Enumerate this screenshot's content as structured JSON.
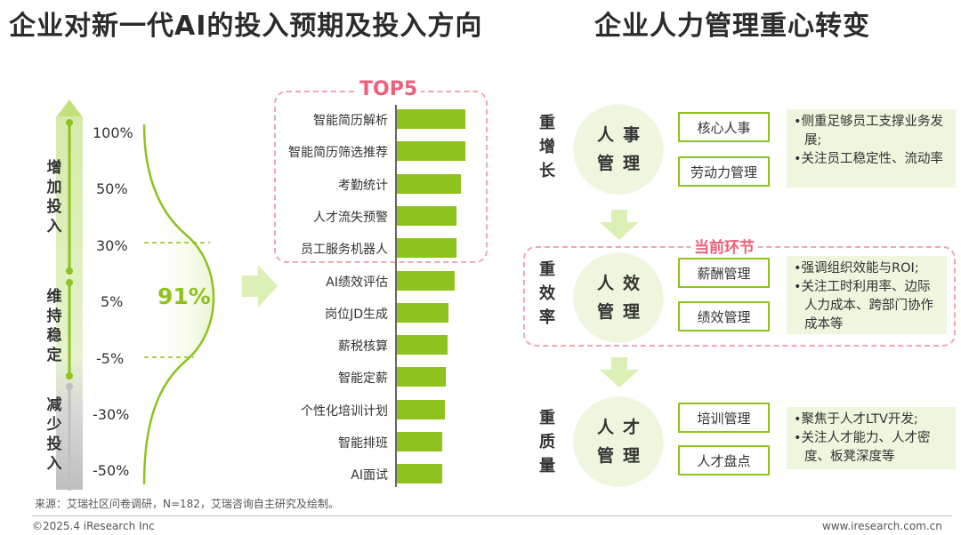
{
  "left": {
    "title": "企业对新一代AI的投入预期及投入方向",
    "y_groups": [
      {
        "label": "增加投入",
        "color": "#8dc21f"
      },
      {
        "label": "维持稳定",
        "color": "#8dc21f"
      },
      {
        "label": "减少投入",
        "color": "#bfbfbf"
      }
    ],
    "y_ticks": [
      "100%",
      "50%",
      "30%",
      "5%",
      "-5%",
      "-30%",
      "-50%"
    ],
    "highlight_value": "91%",
    "top5_label": "TOP5"
  },
  "chart_data": {
    "type": "bar",
    "orientation": "horizontal",
    "categories": [
      "智能简历解析",
      "智能简历筛选推荐",
      "考勤统计",
      "人才流失预警",
      "员工服务机器人",
      "AI绩效评估",
      "岗位JD生成",
      "薪税核算",
      "智能定薪",
      "个性化培训计划",
      "智能排班",
      "AI面试"
    ],
    "values": [
      87,
      87,
      82,
      76,
      76,
      74,
      66,
      65,
      63,
      61,
      58,
      58
    ],
    "bar_color": "#8dc21f",
    "highlight": {
      "label": "TOP5",
      "count": 5
    }
  },
  "right": {
    "title": "企业人力管理重心转变",
    "current_label": "当前环节",
    "rows": [
      {
        "side": "重增长",
        "circle": [
          "人事",
          "管理"
        ],
        "boxes": [
          "核心人事",
          "劳动力管理"
        ],
        "notes": [
          "•侧重足够员工支撑业务发展;",
          "•关注员工稳定性、流动率"
        ]
      },
      {
        "side": "重效率",
        "circle": [
          "人效",
          "管理"
        ],
        "boxes": [
          "薪酬管理",
          "绩效管理"
        ],
        "notes": [
          "•强调组织效能与ROI;",
          "•关注工时利用率、边际人力成本、跨部门协作成本等"
        ]
      },
      {
        "side": "重质量",
        "circle": [
          "人才",
          "管理"
        ],
        "boxes": [
          "培训管理",
          "人才盘点"
        ],
        "notes": [
          "•聚焦于人才LTV开发;",
          "•关注人才能力、人才密度、板凳深度等"
        ]
      }
    ]
  },
  "footer": {
    "source": "来源：艾瑞社区问卷调研，N=182，艾瑞咨询自主研究及绘制。",
    "copyright": "©2025.4 iResearch Inc",
    "website": "www.iresearch.com.cn"
  },
  "colors": {
    "accent": "#8dc21f",
    "light": "#eef6de",
    "pink": "#ee5f7a",
    "gray": "#bfbfbf"
  }
}
